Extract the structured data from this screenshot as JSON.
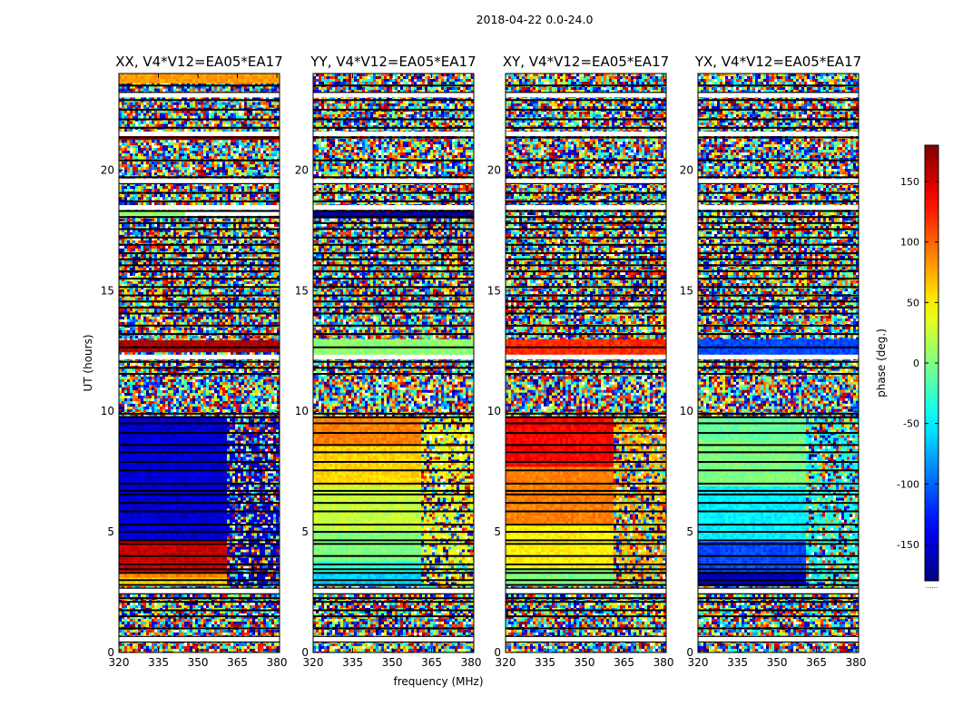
{
  "figure": {
    "suptitle": "2018-04-22 0.0-24.0",
    "xlabel": "frequency (MHz)",
    "ylabel": "UT (hours)"
  },
  "chart_data": {
    "type": "heatmap",
    "title": "2018-04-22 0.0-24.0",
    "xlabel": "frequency (MHz)",
    "ylabel": "UT (hours)",
    "xlim": [
      320,
      381
    ],
    "ylim": [
      0,
      24
    ],
    "x_ticks": [
      320,
      335,
      350,
      365,
      380
    ],
    "y_ticks": [
      0,
      5,
      10,
      15,
      20
    ],
    "value_label": "phase (deg.)",
    "value_range": [
      -180,
      180
    ],
    "colormap": "jet",
    "colorbar": {
      "label": "phase (deg.)",
      "ticks": [
        150,
        100,
        50,
        0,
        -50,
        -100,
        -150
      ],
      "extra_label": "......"
    },
    "flagged_rows_hours": [
      0.45,
      0.65,
      1.0,
      1.5,
      1.75,
      2.1,
      2.25,
      2.45,
      2.65,
      2.8,
      3.0,
      3.3,
      3.45,
      3.65,
      4.0,
      4.5,
      4.65,
      5.0,
      5.3,
      5.85,
      6.2,
      6.55,
      6.7,
      7.0,
      7.55,
      7.9,
      8.3,
      8.6,
      9.1,
      9.5,
      9.75,
      9.9,
      11.55,
      11.8,
      12.05,
      12.3,
      12.65,
      13.2,
      13.55,
      14.05,
      14.3,
      14.55,
      14.8,
      15.15,
      15.5,
      15.8,
      16.05,
      16.3,
      16.55,
      16.9,
      17.2,
      17.55,
      17.8,
      18.05,
      18.3,
      18.7,
      19.05,
      19.45,
      19.7,
      20.4,
      21.35,
      21.55,
      21.75,
      22.1,
      22.5,
      22.9,
      23.2,
      23.5
    ],
    "blank_rows_hours": [
      0.55,
      2.55,
      12.25,
      18.45,
      19.55,
      21.5,
      23.1
    ],
    "panels": [
      {
        "title": "XX, V4*V12=EA05*EA17",
        "regions": [
          {
            "t": [
              0.0,
              2.75
            ],
            "f": [
              320,
              381
            ],
            "kind": "noise"
          },
          {
            "t": [
              2.75,
              3.1
            ],
            "f": [
              320,
              361
            ],
            "kind": "coherent",
            "phase": 60
          },
          {
            "t": [
              3.1,
              3.35
            ],
            "f": [
              320,
              361
            ],
            "kind": "coherent",
            "phase": 90
          },
          {
            "t": [
              3.35,
              4.6
            ],
            "f": [
              320,
              361
            ],
            "kind": "coherent",
            "phase": 155
          },
          {
            "t": [
              4.6,
              9.8
            ],
            "f": [
              320,
              361
            ],
            "kind": "coherent",
            "phase": -150
          },
          {
            "t": [
              2.75,
              9.8
            ],
            "f": [
              361,
              381
            ],
            "kind": "mixed",
            "phase": -150
          },
          {
            "t": [
              9.8,
              12.45
            ],
            "f": [
              320,
              381
            ],
            "kind": "noise"
          },
          {
            "t": [
              12.45,
              12.95
            ],
            "f": [
              320,
              381
            ],
            "kind": "coherent",
            "phase": 165
          },
          {
            "t": [
              12.95,
              18.1
            ],
            "f": [
              320,
              381
            ],
            "kind": "noise"
          },
          {
            "t": [
              18.1,
              18.35
            ],
            "f": [
              320,
              345
            ],
            "kind": "coherent",
            "phase": 10
          },
          {
            "t": [
              18.35,
              21.25
            ],
            "f": [
              320,
              381
            ],
            "kind": "noise"
          },
          {
            "t": [
              21.25,
              21.5
            ],
            "f": [
              320,
              381
            ],
            "kind": "coherent",
            "phase": 170
          },
          {
            "t": [
              21.5,
              23.6
            ],
            "f": [
              320,
              381
            ],
            "kind": "noise"
          },
          {
            "t": [
              23.6,
              24.0
            ],
            "f": [
              320,
              381
            ],
            "kind": "coherent",
            "phase": 80
          }
        ]
      },
      {
        "title": "YY, V4*V12=EA05*EA17",
        "regions": [
          {
            "t": [
              0.0,
              2.75
            ],
            "f": [
              320,
              381
            ],
            "kind": "noise"
          },
          {
            "t": [
              2.75,
              3.3
            ],
            "f": [
              320,
              361
            ],
            "kind": "coherent",
            "phase": -60
          },
          {
            "t": [
              3.3,
              3.8
            ],
            "f": [
              320,
              361
            ],
            "kind": "coherent",
            "phase": -30
          },
          {
            "t": [
              3.8,
              5.0
            ],
            "f": [
              320,
              361
            ],
            "kind": "coherent",
            "phase": 0
          },
          {
            "t": [
              5.0,
              6.9
            ],
            "f": [
              320,
              361
            ],
            "kind": "coherent",
            "phase": 25
          },
          {
            "t": [
              6.9,
              8.6
            ],
            "f": [
              320,
              361
            ],
            "kind": "coherent",
            "phase": 60
          },
          {
            "t": [
              8.6,
              9.8
            ],
            "f": [
              320,
              361
            ],
            "kind": "coherent",
            "phase": 90
          },
          {
            "t": [
              2.75,
              9.8
            ],
            "f": [
              361,
              381
            ],
            "kind": "mixed",
            "phase": 40
          },
          {
            "t": [
              9.8,
              12.35
            ],
            "f": [
              320,
              381
            ],
            "kind": "noise"
          },
          {
            "t": [
              12.35,
              13.0
            ],
            "f": [
              320,
              381
            ],
            "kind": "coherent",
            "phase": 5
          },
          {
            "t": [
              13.0,
              18.0
            ],
            "f": [
              320,
              381
            ],
            "kind": "noise"
          },
          {
            "t": [
              18.0,
              18.3
            ],
            "f": [
              320,
              381
            ],
            "kind": "coherent",
            "phase": -170
          },
          {
            "t": [
              18.3,
              24.0
            ],
            "f": [
              320,
              381
            ],
            "kind": "noise"
          }
        ]
      },
      {
        "title": "XY, V4*V12=EA05*EA17",
        "regions": [
          {
            "t": [
              0.0,
              2.75
            ],
            "f": [
              320,
              381
            ],
            "kind": "noise"
          },
          {
            "t": [
              2.75,
              3.5
            ],
            "f": [
              320,
              361
            ],
            "kind": "coherent",
            "phase": 0
          },
          {
            "t": [
              3.5,
              5.3
            ],
            "f": [
              320,
              361
            ],
            "kind": "coherent",
            "phase": 50
          },
          {
            "t": [
              5.3,
              7.7
            ],
            "f": [
              320,
              361
            ],
            "kind": "coherent",
            "phase": 90
          },
          {
            "t": [
              7.7,
              9.8
            ],
            "f": [
              320,
              361
            ],
            "kind": "coherent",
            "phase": 135
          },
          {
            "t": [
              2.75,
              9.8
            ],
            "f": [
              361,
              381
            ],
            "kind": "mixed",
            "phase": 70
          },
          {
            "t": [
              9.8,
              12.35
            ],
            "f": [
              320,
              381
            ],
            "kind": "noise"
          },
          {
            "t": [
              12.35,
              13.0
            ],
            "f": [
              320,
              381
            ],
            "kind": "coherent",
            "phase": 120
          },
          {
            "t": [
              13.0,
              24.0
            ],
            "f": [
              320,
              381
            ],
            "kind": "noise"
          }
        ]
      },
      {
        "title": "YX, V4*V12=EA05*EA17",
        "regions": [
          {
            "t": [
              0.0,
              2.75
            ],
            "f": [
              320,
              381
            ],
            "kind": "noise"
          },
          {
            "t": [
              2.75,
              3.35
            ],
            "f": [
              320,
              361
            ],
            "kind": "coherent",
            "phase": -160
          },
          {
            "t": [
              3.35,
              4.6
            ],
            "f": [
              320,
              361
            ],
            "kind": "coherent",
            "phase": -110
          },
          {
            "t": [
              4.6,
              6.9
            ],
            "f": [
              320,
              361
            ],
            "kind": "coherent",
            "phase": -50
          },
          {
            "t": [
              6.9,
              8.8
            ],
            "f": [
              320,
              361
            ],
            "kind": "coherent",
            "phase": 0
          },
          {
            "t": [
              8.8,
              9.8
            ],
            "f": [
              320,
              361
            ],
            "kind": "coherent",
            "phase": -10
          },
          {
            "t": [
              2.75,
              9.8
            ],
            "f": [
              361,
              381
            ],
            "kind": "mixed",
            "phase": -40
          },
          {
            "t": [
              9.8,
              12.35
            ],
            "f": [
              320,
              381
            ],
            "kind": "noise"
          },
          {
            "t": [
              12.35,
              13.0
            ],
            "f": [
              320,
              381
            ],
            "kind": "coherent",
            "phase": -110
          },
          {
            "t": [
              13.0,
              24.0
            ],
            "f": [
              320,
              381
            ],
            "kind": "noise"
          }
        ]
      }
    ]
  }
}
